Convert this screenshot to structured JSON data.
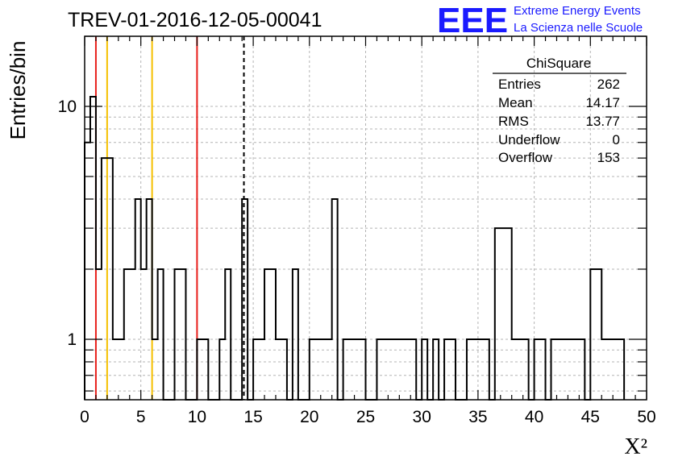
{
  "header": {
    "run_title": "TREV-01-2016-12-05-00041",
    "logo_text": "EEE",
    "logo_line1": "Extreme Energy Events",
    "logo_line2": "La Scienza nelle Scuole",
    "logo_color": "#1a1aff"
  },
  "stats": {
    "title": "ChiSquare",
    "rows": [
      {
        "label": "Entries",
        "value": "262"
      },
      {
        "label": "Mean",
        "value": "14.17"
      },
      {
        "label": "RMS",
        "value": "13.77"
      },
      {
        "label": "Underflow",
        "value": "0"
      },
      {
        "label": "Overflow",
        "value": "153"
      }
    ]
  },
  "chart_data": {
    "type": "bar",
    "style": "step-histogram",
    "xlabel": "Χ²",
    "ylabel": "Entries/bin",
    "xlim": [
      0,
      50
    ],
    "ylim": [
      0.55,
      20
    ],
    "yscale": "log",
    "bin_width": 1,
    "grid": true,
    "x_ticks": [
      "0",
      "5",
      "10",
      "15",
      "20",
      "25",
      "30",
      "35",
      "40",
      "45",
      "50"
    ],
    "y_ticks": [
      "1",
      "10"
    ],
    "bin_edges": [
      0,
      0.5,
      1,
      1.5,
      2.5,
      3.5,
      4.5,
      5,
      5.5,
      6,
      6.5,
      7,
      8,
      9,
      10,
      11,
      12,
      12.5,
      13,
      14,
      14.5,
      15,
      16,
      17,
      18,
      18.5,
      19,
      20,
      22,
      22.5,
      23,
      25,
      26,
      29.5,
      30,
      30.5,
      31,
      31.5,
      32,
      33,
      34,
      36,
      36.5,
      38,
      39.5,
      40,
      41,
      41.5,
      44.5,
      45,
      46,
      47.5,
      48
    ],
    "values": [
      7,
      11,
      2,
      6,
      1,
      2,
      4,
      2,
      4,
      1,
      2,
      0,
      2,
      0,
      1,
      0,
      1,
      2,
      0,
      4,
      0,
      1,
      2,
      1,
      0,
      2,
      0,
      1,
      4,
      0,
      1,
      0,
      1,
      0,
      1,
      0,
      1,
      0,
      1,
      0,
      1,
      0,
      3,
      1,
      0,
      1,
      0,
      1,
      0,
      2,
      1,
      1
    ],
    "markers": [
      {
        "x": 1,
        "color": "#e8201c"
      },
      {
        "x": 2,
        "color": "#f5c000"
      },
      {
        "x": 6,
        "color": "#f5c000"
      },
      {
        "x": 10,
        "color": "#e8201c"
      },
      {
        "x": 14.17,
        "color": "#000000",
        "style": "dashed"
      }
    ]
  }
}
